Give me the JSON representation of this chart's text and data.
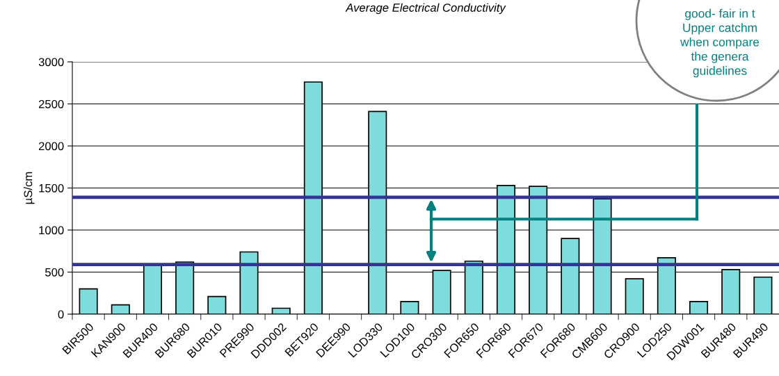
{
  "chart_data": {
    "type": "bar",
    "title": "Average Electrical Conductivity",
    "ylabel": "µS/cm",
    "categories": [
      "BIR500",
      "KAN900",
      "BUR400",
      "BUR680",
      "BUR010",
      "PRE990",
      "DDD002",
      "BET920",
      "DEE990",
      "LOD330",
      "LOD100",
      "CRO300",
      "FOR650",
      "FOR660",
      "FOR670",
      "FOR680",
      "CMB600",
      "CRO900",
      "LOD250",
      "DDW001",
      "BUR480",
      "BUR490"
    ],
    "values": [
      300,
      110,
      590,
      620,
      210,
      740,
      70,
      2760,
      null,
      2410,
      150,
      520,
      630,
      1530,
      1520,
      900,
      1370,
      420,
      670,
      150,
      530,
      440
    ],
    "color": "#7fdcdc",
    "ylim": [
      0,
      3000
    ],
    "yticks": [
      0,
      500,
      1000,
      1500,
      2000,
      2500,
      3000
    ],
    "grid": "y",
    "ref_lines": [
      {
        "axis": "y",
        "value": 1390,
        "label": null,
        "color": "#333399"
      },
      {
        "axis": "y",
        "value": 590,
        "label": null,
        "color": "#333399"
      }
    ],
    "annotations": [
      "good- fair in t\nUpper catchm\nwhen compare\nthe genera\nguidelines"
    ]
  }
}
